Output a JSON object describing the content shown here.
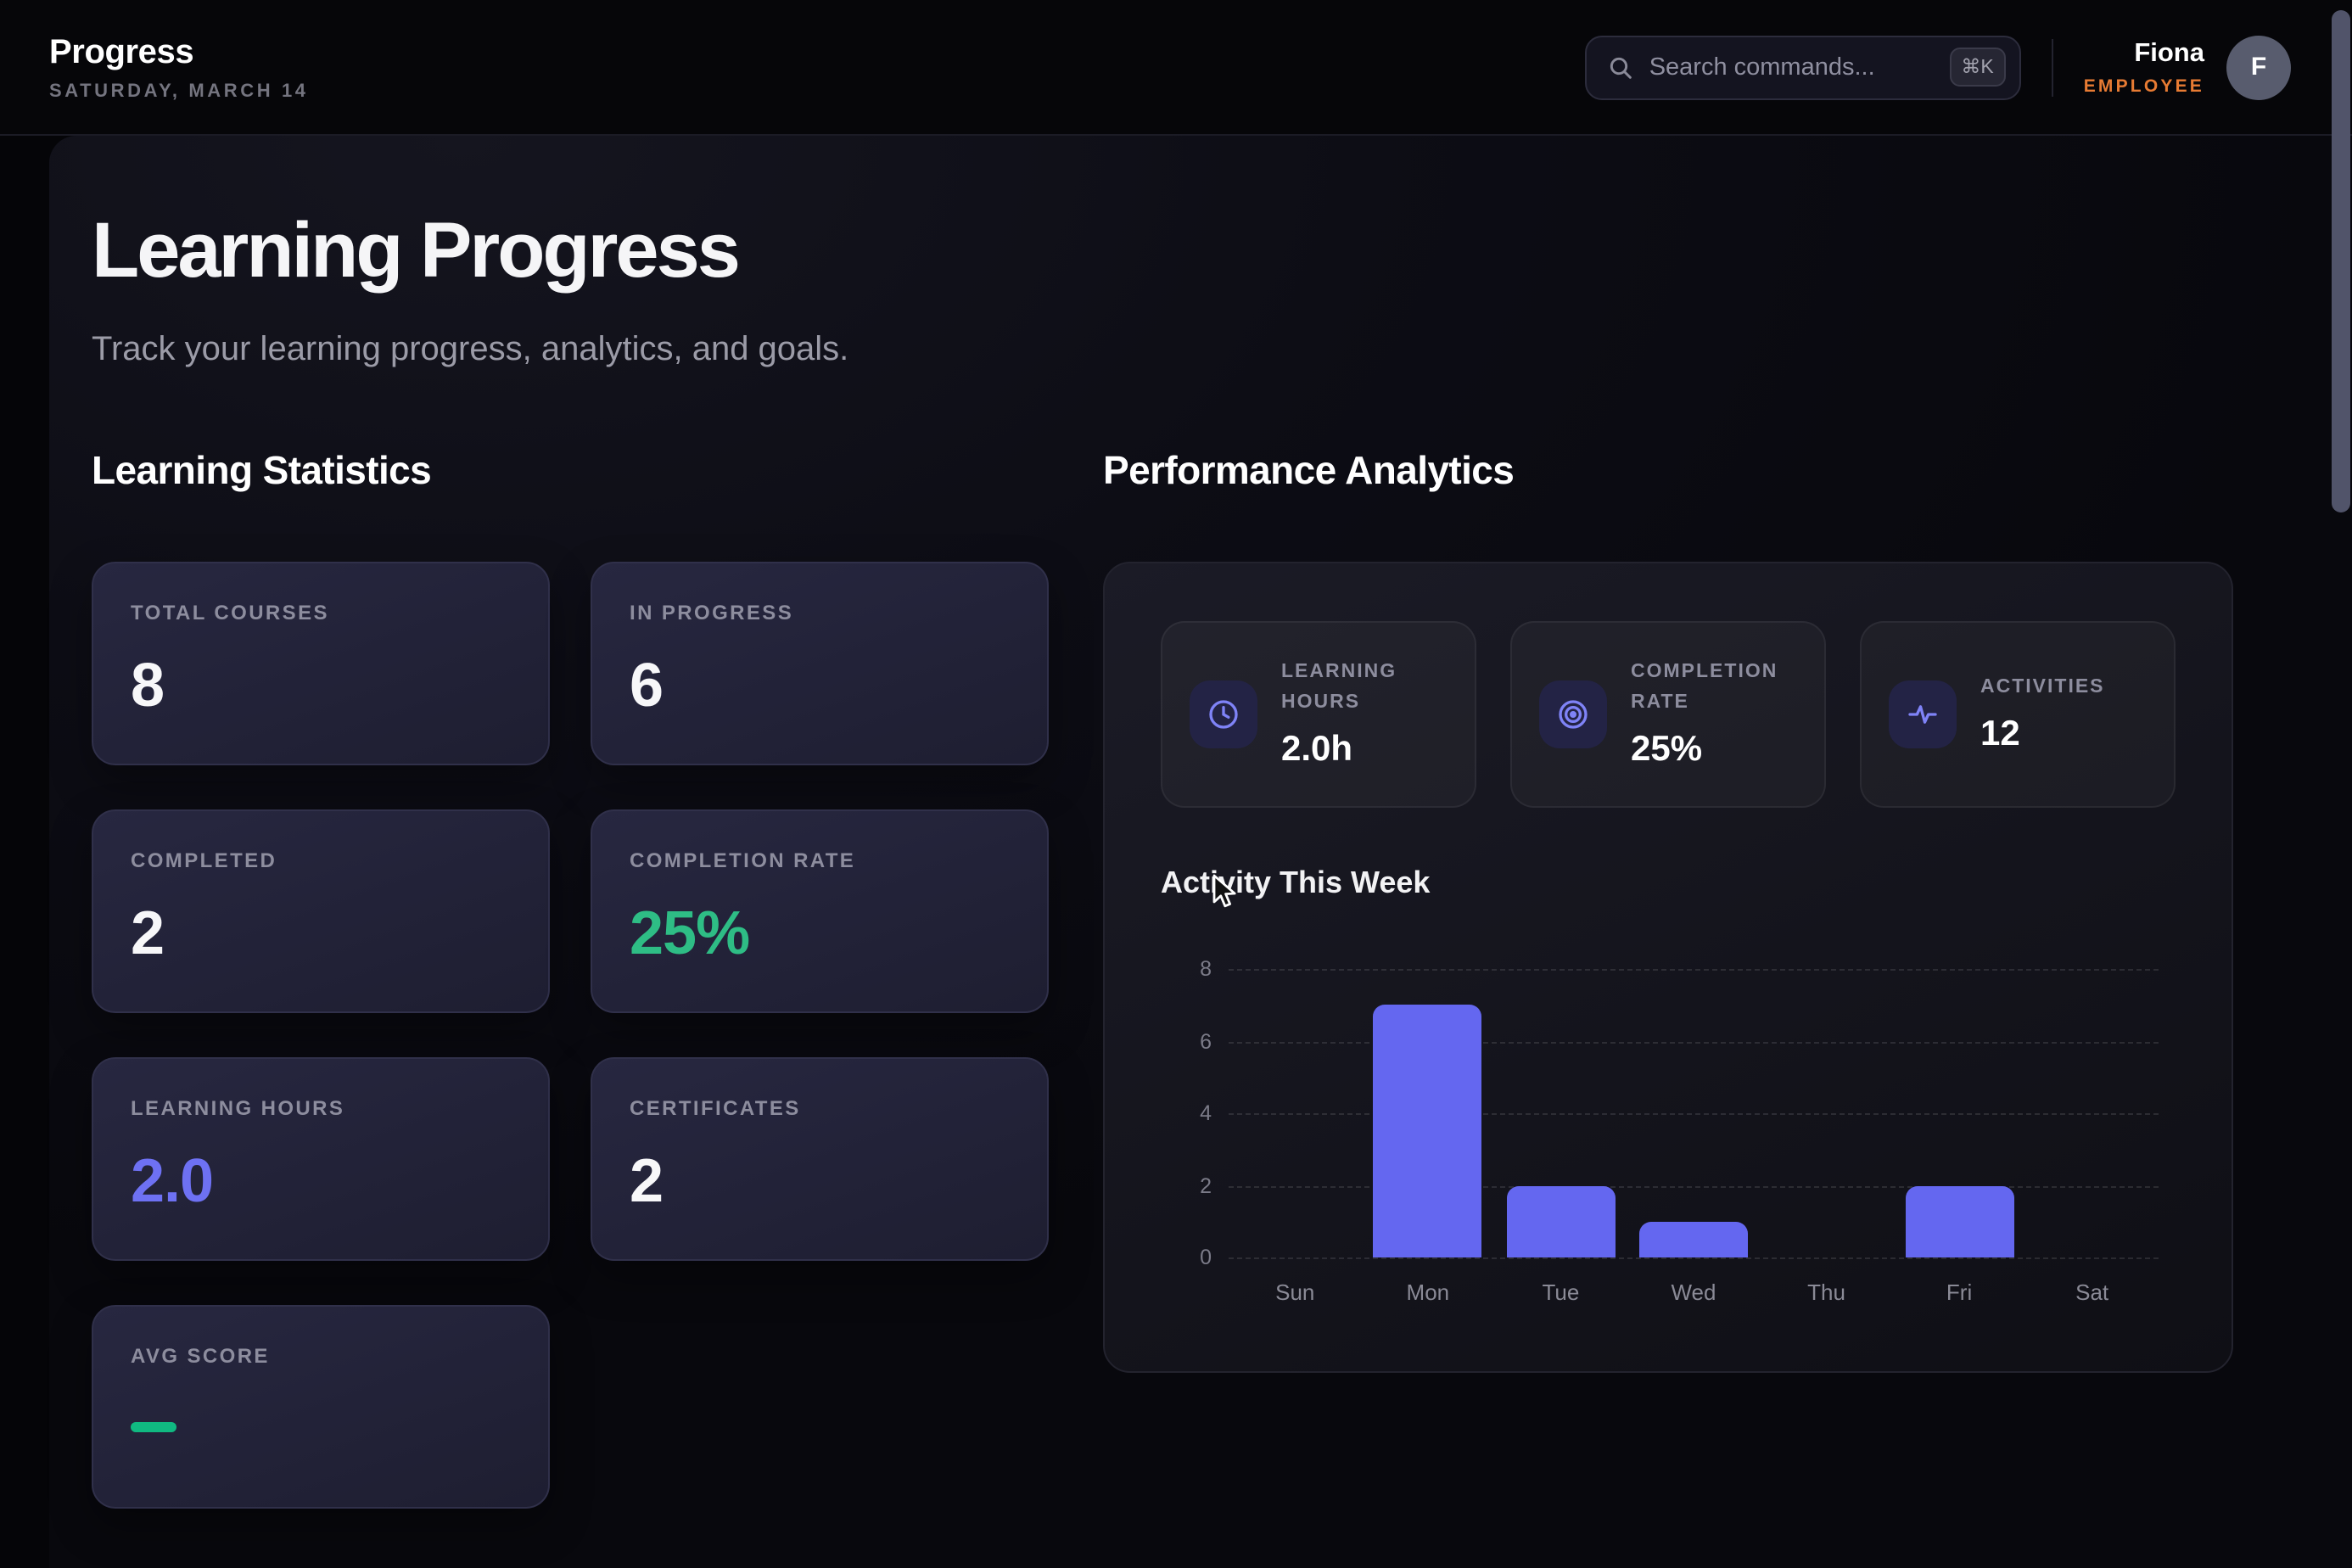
{
  "header": {
    "app_title": "Progress",
    "date": "SATURDAY, MARCH 14",
    "search": {
      "placeholder": "Search commands...",
      "shortcut": "⌘K"
    },
    "user": {
      "name": "Fiona",
      "role": "EMPLOYEE",
      "avatar_initial": "F"
    }
  },
  "page": {
    "title": "Learning Progress",
    "subtitle": "Track your learning progress, analytics, and goals."
  },
  "stats_section": {
    "heading": "Learning Statistics",
    "cards": [
      {
        "label": "TOTAL COURSES",
        "value": "8",
        "accent": "white"
      },
      {
        "label": "IN PROGRESS",
        "value": "6",
        "accent": "white"
      },
      {
        "label": "COMPLETED",
        "value": "2",
        "accent": "white"
      },
      {
        "label": "COMPLETION RATE",
        "value": "25%",
        "accent": "green"
      },
      {
        "label": "LEARNING HOURS",
        "value": "2.0",
        "accent": "purple"
      },
      {
        "label": "CERTIFICATES",
        "value": "2",
        "accent": "white"
      },
      {
        "label": "AVG SCORE",
        "value": "",
        "accent": "dash"
      }
    ]
  },
  "analytics_section": {
    "heading": "Performance Analytics",
    "kpis": [
      {
        "icon": "clock-icon",
        "label": "LEARNING HOURS",
        "value": "2.0h"
      },
      {
        "icon": "target-icon",
        "label": "COMPLETION RATE",
        "value": "25%"
      },
      {
        "icon": "activity-icon",
        "label": "ACTIVITIES",
        "value": "12"
      }
    ]
  },
  "chart_data": {
    "type": "bar",
    "title": "Activity This Week",
    "categories": [
      "Sun",
      "Mon",
      "Tue",
      "Wed",
      "Thu",
      "Fri",
      "Sat"
    ],
    "values": [
      0,
      7,
      2,
      1,
      0,
      2,
      0
    ],
    "xlabel": "",
    "ylabel": "",
    "ylim": [
      0,
      8
    ],
    "yticks": [
      0,
      2,
      4,
      6,
      8
    ],
    "grid": "dashed horizontal",
    "legend": "none",
    "bar_color": "#6467f0"
  },
  "colors": {
    "accent_green": "#2ebd85",
    "dash_green": "#10b981",
    "accent_purple": "#6e71f3",
    "bar_indigo": "#6467f0",
    "role_orange": "#e87b33"
  }
}
